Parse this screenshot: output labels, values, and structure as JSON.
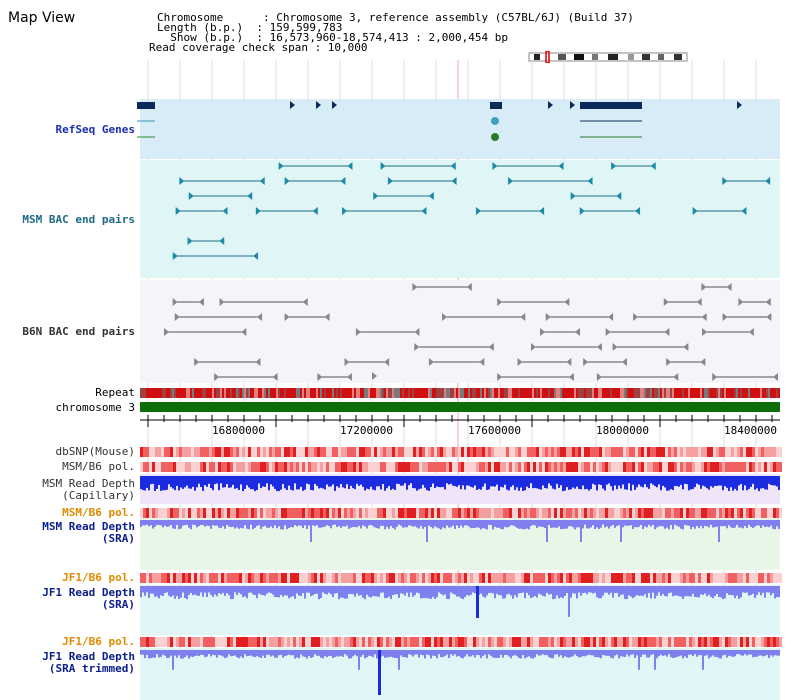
{
  "map_view": {
    "title": "Map View",
    "info": {
      "chromosome_line": "Chromosome      : Chromosome 3, reference assembly (C57BL/6J) (Build 37)",
      "length_line": "Length (b.p.)  : 159,599,783",
      "show_line": "  Show (b.p.)  : 16,573,960-18,574,413 : 2,000,454 bp",
      "coverage_line": "Read coverage check span : 10,000"
    },
    "tracks": {
      "refseq_genes": "RefSeq Genes",
      "msm_bac": "MSM BAC end pairs",
      "b6n_bac": "B6N BAC end pairs",
      "repeat": "Repeat",
      "chromosome": "chromosome 3",
      "dbsnp": "dbSNP(Mouse)",
      "msm_b6_pol_1": "MSM/B6 pol.",
      "msm_read_depth_cap_1": "MSM Read Depth",
      "msm_read_depth_cap_2": "(Capillary)",
      "msm_b6_pol_2": "MSM/B6 pol.",
      "msm_read_depth_sra_1": "MSM Read Depth",
      "msm_read_depth_sra_2": "(SRA)",
      "jf1_b6_pol_1": "JF1/B6 pol.",
      "jf1_read_depth_sra_1": "JF1 Read Depth",
      "jf1_read_depth_sra_2": "(SRA)",
      "jf1_b6_pol_2": "JF1/B6 pol.",
      "jf1_read_depth_trim_1": "JF1 Read Depth",
      "jf1_read_depth_trim_2": "(SRA trimmed)"
    },
    "ruler": {
      "ticks": [
        "16800000",
        "17200000",
        "17600000",
        "18000000",
        "18400000"
      ]
    },
    "colors": {
      "gene": "#0a2a5a",
      "refseq_bg": "#d8ecf8",
      "msm_bg": "#e0f6f6",
      "b6n_bg": "#f4f4fa",
      "chromosome": "#0b6e0b",
      "pol_track": "#f06060",
      "depth_capillary": "#1a2be0",
      "depth_sra": "#7f7ff0"
    }
  }
}
